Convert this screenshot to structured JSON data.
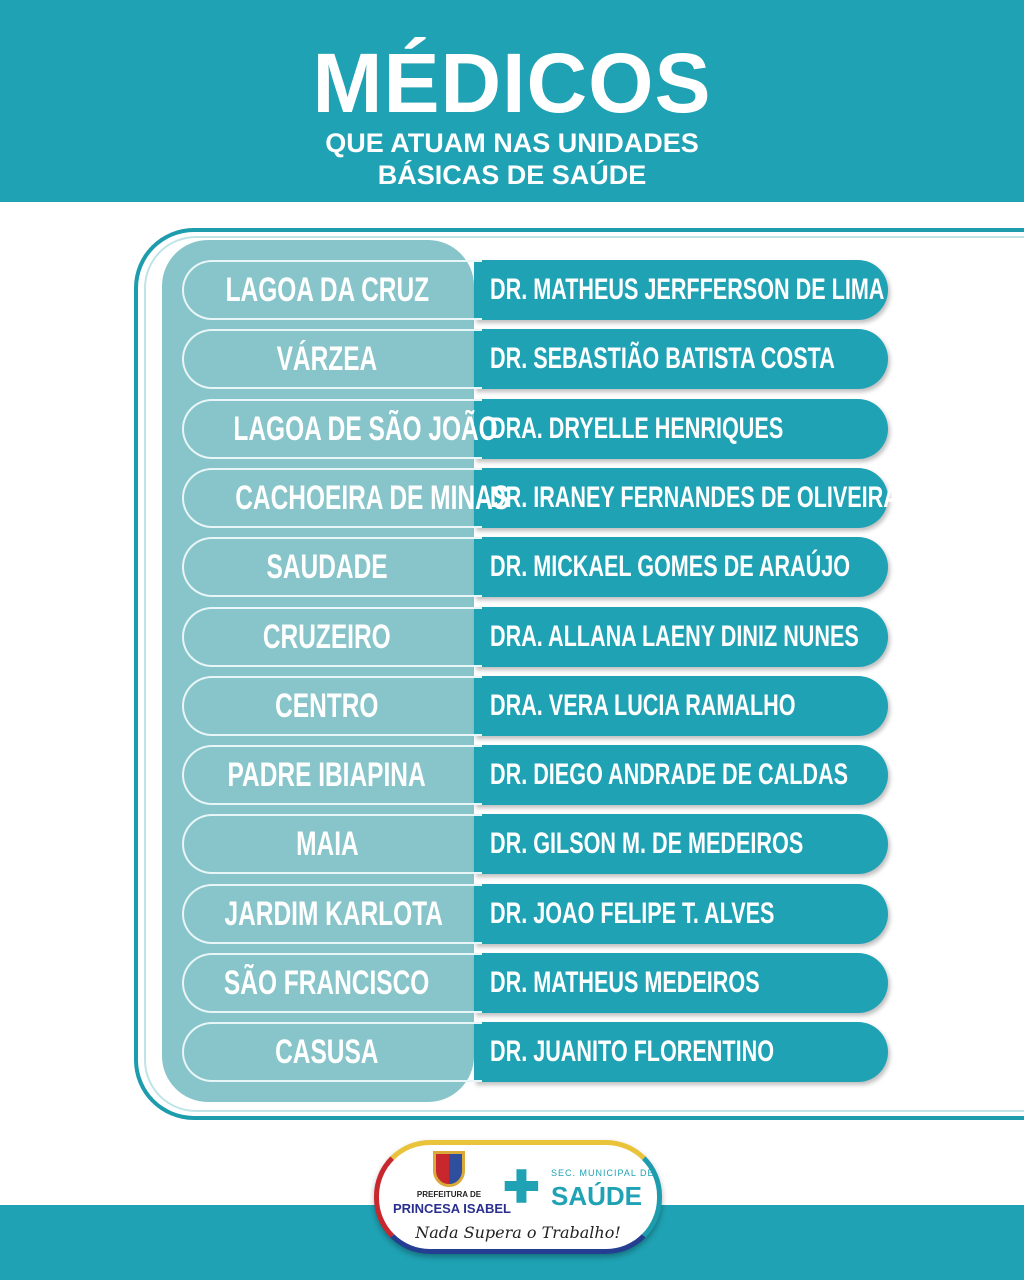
{
  "header": {
    "title": "MÉDICOS",
    "subtitle_line1": "QUE ATUAM NAS UNIDADES",
    "subtitle_line2": "BÁSICAS DE SAÚDE"
  },
  "rows": [
    {
      "unit": "LAGOA DA CRUZ",
      "doctor": "DR. MATHEUS JERFFERSON DE LIMA"
    },
    {
      "unit": "VÁRZEA",
      "doctor": "DR. SEBASTIÃO BATISTA COSTA"
    },
    {
      "unit": "LAGOA DE SÃO JOÃO",
      "doctor": "DRA. DRYELLE HENRIQUES"
    },
    {
      "unit": "CACHOEIRA DE MINAS",
      "doctor": "DR. IRANEY FERNANDES DE OLIVEIRA"
    },
    {
      "unit": "SAUDADE",
      "doctor": "DR. MICKAEL GOMES DE ARAÚJO"
    },
    {
      "unit": "CRUZEIRO",
      "doctor": "DRA. ALLANA LAENY DINIZ NUNES"
    },
    {
      "unit": "CENTRO",
      "doctor": "DRA. VERA LUCIA RAMALHO"
    },
    {
      "unit": "PADRE IBIAPINA",
      "doctor": "DR. DIEGO ANDRADE DE CALDAS"
    },
    {
      "unit": "MAIA",
      "doctor": "DR.  GILSON M. DE MEDEIROS"
    },
    {
      "unit": "JARDIM KARLOTA",
      "doctor": "DR. JOAO FELIPE T. ALVES"
    },
    {
      "unit": "SÃO FRANCISCO",
      "doctor": "DR. MATHEUS MEDEIROS"
    },
    {
      "unit": "CASUSA",
      "doctor": "DR. JUANITO FLORENTINO"
    }
  ],
  "footer": {
    "prefeitura": "PREFEITURA DE",
    "city": "PRINCESA ISABEL",
    "slogan": "Nada Supera o Trabalho!",
    "sec": "SEC. MUNICIPAL DE",
    "saude": "SAÚDE"
  },
  "colors": {
    "teal": "#1fa2b4",
    "panel": "#88c5ca"
  }
}
